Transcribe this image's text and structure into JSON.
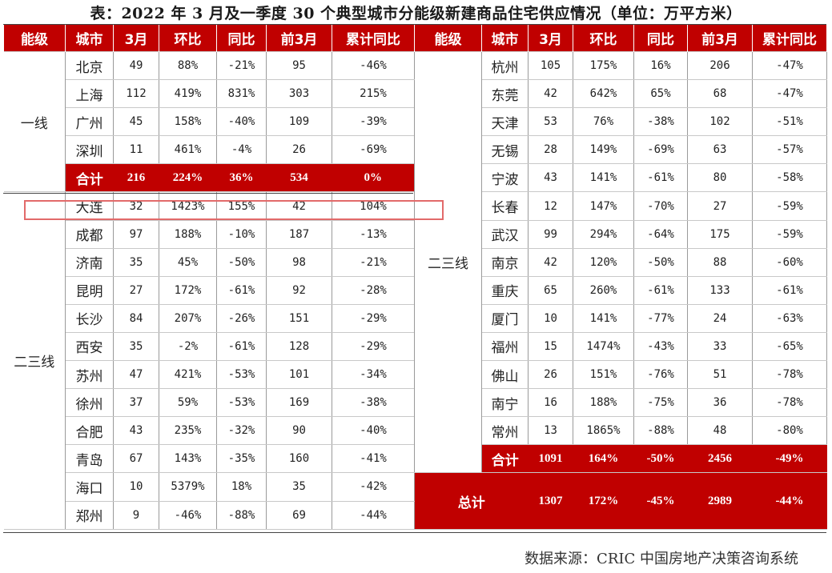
{
  "title": "表：2022 年 3 月及一季度 30 个典型城市分能级新建商品住宅供应情况（单位：万平方米）",
  "headers": [
    "能级",
    "城市",
    "3月",
    "环比",
    "同比",
    "前3月",
    "累计同比"
  ],
  "left": {
    "tier1_label": "一线",
    "tier1_rows": [
      [
        "北京",
        "49",
        "88%",
        "-21%",
        "95",
        "-46%"
      ],
      [
        "上海",
        "112",
        "419%",
        "831%",
        "303",
        "215%"
      ],
      [
        "广州",
        "45",
        "158%",
        "-40%",
        "109",
        "-39%"
      ],
      [
        "深圳",
        "11",
        "461%",
        "-4%",
        "26",
        "-69%"
      ]
    ],
    "tier1_total": [
      "合计",
      "216",
      "224%",
      "36%",
      "534",
      "0%"
    ],
    "tier23_label": "二三线",
    "tier23_rows": [
      [
        "大连",
        "32",
        "1423%",
        "155%",
        "42",
        "104%"
      ],
      [
        "成都",
        "97",
        "188%",
        "-10%",
        "187",
        "-13%"
      ],
      [
        "济南",
        "35",
        "45%",
        "-50%",
        "98",
        "-21%"
      ],
      [
        "昆明",
        "27",
        "172%",
        "-61%",
        "92",
        "-28%"
      ],
      [
        "长沙",
        "84",
        "207%",
        "-26%",
        "151",
        "-29%"
      ],
      [
        "西安",
        "35",
        "-2%",
        "-61%",
        "128",
        "-29%"
      ],
      [
        "苏州",
        "47",
        "421%",
        "-53%",
        "101",
        "-34%"
      ],
      [
        "徐州",
        "37",
        "59%",
        "-53%",
        "169",
        "-38%"
      ],
      [
        "合肥",
        "43",
        "235%",
        "-32%",
        "90",
        "-40%"
      ],
      [
        "青岛",
        "67",
        "143%",
        "-35%",
        "160",
        "-41%"
      ],
      [
        "海口",
        "10",
        "5379%",
        "18%",
        "35",
        "-42%"
      ],
      [
        "郑州",
        "9",
        "-46%",
        "-88%",
        "69",
        "-44%"
      ]
    ]
  },
  "right": {
    "tier23_label": "二三线",
    "rows": [
      [
        "杭州",
        "105",
        "175%",
        "16%",
        "206",
        "-47%"
      ],
      [
        "东莞",
        "42",
        "642%",
        "65%",
        "68",
        "-47%"
      ],
      [
        "天津",
        "53",
        "76%",
        "-38%",
        "102",
        "-51%"
      ],
      [
        "无锡",
        "28",
        "149%",
        "-69%",
        "63",
        "-57%"
      ],
      [
        "宁波",
        "43",
        "141%",
        "-61%",
        "80",
        "-58%"
      ],
      [
        "长春",
        "12",
        "147%",
        "-70%",
        "27",
        "-59%"
      ],
      [
        "武汉",
        "99",
        "294%",
        "-64%",
        "175",
        "-59%"
      ],
      [
        "南京",
        "42",
        "120%",
        "-50%",
        "88",
        "-60%"
      ],
      [
        "重庆",
        "65",
        "260%",
        "-61%",
        "133",
        "-61%"
      ],
      [
        "厦门",
        "10",
        "141%",
        "-77%",
        "24",
        "-63%"
      ],
      [
        "福州",
        "15",
        "1474%",
        "-43%",
        "33",
        "-65%"
      ],
      [
        "佛山",
        "26",
        "151%",
        "-76%",
        "51",
        "-78%"
      ],
      [
        "南宁",
        "16",
        "188%",
        "-75%",
        "36",
        "-78%"
      ],
      [
        "常州",
        "13",
        "1865%",
        "-88%",
        "48",
        "-80%"
      ]
    ],
    "tier23_total": [
      "合计",
      "1091",
      "164%",
      "-50%",
      "2456",
      "-49%"
    ],
    "grand_total": [
      "总计",
      "1307",
      "172%",
      "-45%",
      "2989",
      "-44%"
    ]
  },
  "source": "数据来源：CRIC 中国房地产决策咨询系统",
  "colors": {
    "header_red": "#c00000",
    "highlight_border": "#e26a6a"
  }
}
